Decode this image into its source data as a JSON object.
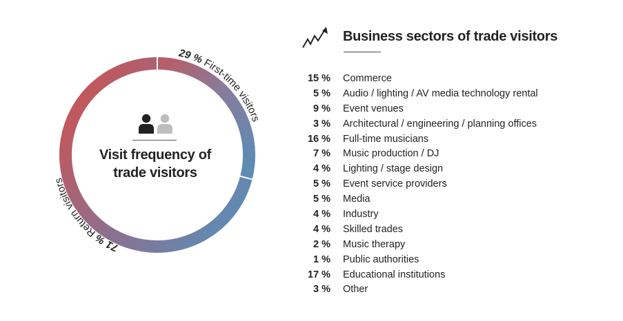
{
  "visit_frequency": {
    "title_line1": "Visit frequency of",
    "title_line2": "trade visitors",
    "segments": [
      {
        "pct": "29 %",
        "label": "First-time visitors",
        "value": 29
      },
      {
        "pct": "71 %",
        "label": "Return visitors",
        "value": 71
      }
    ],
    "icons": [
      "person-icon-dark",
      "person-icon-light"
    ]
  },
  "sectors": {
    "title": "Business sectors of trade visitors",
    "icon": "trend-line-arrow-icon",
    "rows": [
      {
        "pct": "15 %",
        "name": "Commerce"
      },
      {
        "pct": "5 %",
        "name": "Audio / lighting / AV media technology rental"
      },
      {
        "pct": "9 %",
        "name": "Event venues"
      },
      {
        "pct": "3 %",
        "name": "Architectural / engineering / planning offices"
      },
      {
        "pct": "16 %",
        "name": "Full-time musicians"
      },
      {
        "pct": "7 %",
        "name": "Music production / DJ"
      },
      {
        "pct": "4 %",
        "name": "Lighting / stage design"
      },
      {
        "pct": "5 %",
        "name": "Event service providers"
      },
      {
        "pct": "5 %",
        "name": "Media"
      },
      {
        "pct": "4 %",
        "name": "Industry"
      },
      {
        "pct": "4 %",
        "name": "Skilled trades"
      },
      {
        "pct": "2 %",
        "name": "Music therapy"
      },
      {
        "pct": "1 %",
        "name": "Public authorities"
      },
      {
        "pct": "17 %",
        "name": "Educational institutions"
      },
      {
        "pct": "3 %",
        "name": "Other"
      }
    ]
  },
  "chart_data": [
    {
      "type": "pie",
      "title": "Visit frequency of trade visitors",
      "categories": [
        "First-time visitors",
        "Return visitors"
      ],
      "values": [
        29,
        71
      ],
      "unit": "%",
      "colors": {
        "red": "#c0585e",
        "mid": "#8a7a9a",
        "blue": "#5f8bb3"
      }
    },
    {
      "type": "table",
      "title": "Business sectors of trade visitors",
      "categories": [
        "Commerce",
        "Audio / lighting / AV media technology rental",
        "Event venues",
        "Architectural / engineering / planning offices",
        "Full-time musicians",
        "Music production / DJ",
        "Lighting / stage design",
        "Event service providers",
        "Media",
        "Industry",
        "Skilled trades",
        "Music therapy",
        "Public authorities",
        "Educational institutions",
        "Other"
      ],
      "values": [
        15,
        5,
        9,
        3,
        16,
        7,
        4,
        5,
        5,
        4,
        4,
        2,
        1,
        17,
        3
      ],
      "unit": "%"
    }
  ]
}
